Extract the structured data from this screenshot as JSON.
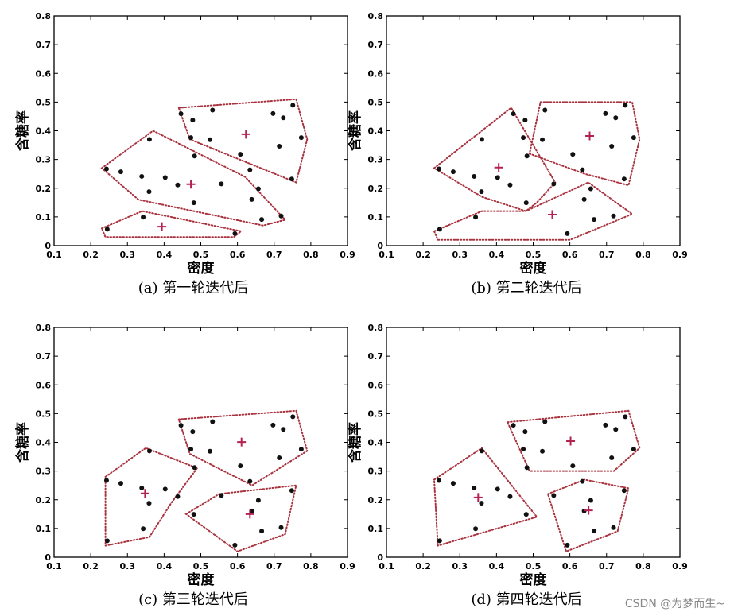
{
  "watermark": "CSDN @为梦而生~",
  "chart_data": [
    {
      "type": "scatter",
      "title": "(a) 第一轮迭代后",
      "xlabel": "密度",
      "ylabel": "含糖率",
      "xlim": [
        0.1,
        0.9
      ],
      "ylim": [
        0,
        0.8
      ],
      "xticks": [
        "0.1",
        "0.2",
        "0.3",
        "0.4",
        "0.5",
        "0.6",
        "0.7",
        "0.8",
        "0.9"
      ],
      "yticks": [
        "0",
        "0.1",
        "0.2",
        "0.3",
        "0.4",
        "0.5",
        "0.6",
        "0.7",
        "0.8"
      ],
      "grid": false,
      "points": [
        [
          0.697,
          0.46
        ],
        [
          0.774,
          0.376
        ],
        [
          0.634,
          0.264
        ],
        [
          0.608,
          0.318
        ],
        [
          0.556,
          0.215
        ],
        [
          0.403,
          0.237
        ],
        [
          0.481,
          0.149
        ],
        [
          0.437,
          0.211
        ],
        [
          0.666,
          0.091
        ],
        [
          0.243,
          0.267
        ],
        [
          0.245,
          0.057
        ],
        [
          0.343,
          0.099
        ],
        [
          0.639,
          0.161
        ],
        [
          0.657,
          0.198
        ],
        [
          0.36,
          0.37
        ],
        [
          0.593,
          0.042
        ],
        [
          0.719,
          0.103
        ],
        [
          0.359,
          0.188
        ],
        [
          0.339,
          0.241
        ],
        [
          0.282,
          0.257
        ],
        [
          0.748,
          0.232
        ],
        [
          0.714,
          0.346
        ],
        [
          0.483,
          0.312
        ],
        [
          0.478,
          0.437
        ],
        [
          0.525,
          0.369
        ],
        [
          0.751,
          0.489
        ],
        [
          0.532,
          0.472
        ],
        [
          0.473,
          0.376
        ],
        [
          0.725,
          0.445
        ],
        [
          0.446,
          0.459
        ]
      ],
      "centroids": [
        [
          0.623,
          0.388
        ],
        [
          0.473,
          0.214
        ],
        [
          0.394,
          0.066
        ]
      ],
      "hulls": [
        [
          [
            0.44,
            0.48
          ],
          [
            0.76,
            0.51
          ],
          [
            0.79,
            0.37
          ],
          [
            0.76,
            0.22
          ],
          [
            0.47,
            0.37
          ]
        ],
        [
          [
            0.23,
            0.27
          ],
          [
            0.37,
            0.4
          ],
          [
            0.62,
            0.24
          ],
          [
            0.73,
            0.09
          ],
          [
            0.67,
            0.07
          ],
          [
            0.33,
            0.16
          ]
        ],
        [
          [
            0.23,
            0.06
          ],
          [
            0.34,
            0.12
          ],
          [
            0.61,
            0.05
          ],
          [
            0.59,
            0.03
          ],
          [
            0.24,
            0.03
          ]
        ]
      ]
    },
    {
      "type": "scatter",
      "title": "(b) 第二轮迭代后",
      "xlabel": "密度",
      "ylabel": "含糖率",
      "xlim": [
        0.1,
        0.9
      ],
      "ylim": [
        0,
        0.8
      ],
      "xticks": [
        "0.1",
        "0.2",
        "0.3",
        "0.4",
        "0.5",
        "0.6",
        "0.7",
        "0.8",
        "0.9"
      ],
      "yticks": [
        "0",
        "0.1",
        "0.2",
        "0.3",
        "0.4",
        "0.5",
        "0.6",
        "0.7",
        "0.8"
      ],
      "grid": false,
      "points": [
        [
          0.697,
          0.46
        ],
        [
          0.774,
          0.376
        ],
        [
          0.634,
          0.264
        ],
        [
          0.608,
          0.318
        ],
        [
          0.556,
          0.215
        ],
        [
          0.403,
          0.237
        ],
        [
          0.481,
          0.149
        ],
        [
          0.437,
          0.211
        ],
        [
          0.666,
          0.091
        ],
        [
          0.243,
          0.267
        ],
        [
          0.245,
          0.057
        ],
        [
          0.343,
          0.099
        ],
        [
          0.639,
          0.161
        ],
        [
          0.657,
          0.198
        ],
        [
          0.36,
          0.37
        ],
        [
          0.593,
          0.042
        ],
        [
          0.719,
          0.103
        ],
        [
          0.359,
          0.188
        ],
        [
          0.339,
          0.241
        ],
        [
          0.282,
          0.257
        ],
        [
          0.748,
          0.232
        ],
        [
          0.714,
          0.346
        ],
        [
          0.483,
          0.312
        ],
        [
          0.478,
          0.437
        ],
        [
          0.525,
          0.369
        ],
        [
          0.751,
          0.489
        ],
        [
          0.532,
          0.472
        ],
        [
          0.473,
          0.376
        ],
        [
          0.725,
          0.445
        ],
        [
          0.446,
          0.459
        ]
      ],
      "centroids": [
        [
          0.654,
          0.382
        ],
        [
          0.406,
          0.272
        ],
        [
          0.552,
          0.108
        ]
      ],
      "hulls": [
        [
          [
            0.52,
            0.5
          ],
          [
            0.77,
            0.5
          ],
          [
            0.79,
            0.37
          ],
          [
            0.76,
            0.21
          ],
          [
            0.64,
            0.25
          ],
          [
            0.49,
            0.32
          ]
        ],
        [
          [
            0.23,
            0.27
          ],
          [
            0.44,
            0.48
          ],
          [
            0.56,
            0.22
          ],
          [
            0.51,
            0.15
          ],
          [
            0.48,
            0.12
          ],
          [
            0.36,
            0.17
          ]
        ],
        [
          [
            0.23,
            0.05
          ],
          [
            0.24,
            0.02
          ],
          [
            0.6,
            0.02
          ],
          [
            0.77,
            0.11
          ],
          [
            0.65,
            0.22
          ],
          [
            0.48,
            0.12
          ],
          [
            0.36,
            0.12
          ]
        ]
      ]
    },
    {
      "type": "scatter",
      "title": "(c) 第三轮迭代后",
      "xlabel": "密度",
      "ylabel": "含糖率",
      "xlim": [
        0.1,
        0.9
      ],
      "ylim": [
        0,
        0.8
      ],
      "xticks": [
        "0.1",
        "0.2",
        "0.3",
        "0.4",
        "0.5",
        "0.6",
        "0.7",
        "0.8",
        "0.9"
      ],
      "yticks": [
        "0",
        "0.1",
        "0.2",
        "0.3",
        "0.4",
        "0.5",
        "0.6",
        "0.7",
        "0.8"
      ],
      "grid": false,
      "points": [
        [
          0.697,
          0.46
        ],
        [
          0.774,
          0.376
        ],
        [
          0.634,
          0.264
        ],
        [
          0.608,
          0.318
        ],
        [
          0.556,
          0.215
        ],
        [
          0.403,
          0.237
        ],
        [
          0.481,
          0.149
        ],
        [
          0.437,
          0.211
        ],
        [
          0.666,
          0.091
        ],
        [
          0.243,
          0.267
        ],
        [
          0.245,
          0.057
        ],
        [
          0.343,
          0.099
        ],
        [
          0.639,
          0.161
        ],
        [
          0.657,
          0.198
        ],
        [
          0.36,
          0.37
        ],
        [
          0.593,
          0.042
        ],
        [
          0.719,
          0.103
        ],
        [
          0.359,
          0.188
        ],
        [
          0.339,
          0.241
        ],
        [
          0.282,
          0.257
        ],
        [
          0.748,
          0.232
        ],
        [
          0.714,
          0.346
        ],
        [
          0.483,
          0.312
        ],
        [
          0.478,
          0.437
        ],
        [
          0.525,
          0.369
        ],
        [
          0.751,
          0.489
        ],
        [
          0.532,
          0.472
        ],
        [
          0.473,
          0.376
        ],
        [
          0.725,
          0.445
        ],
        [
          0.446,
          0.459
        ]
      ],
      "centroids": [
        [
          0.611,
          0.401
        ],
        [
          0.348,
          0.222
        ],
        [
          0.634,
          0.15
        ]
      ],
      "hulls": [
        [
          [
            0.44,
            0.48
          ],
          [
            0.76,
            0.51
          ],
          [
            0.79,
            0.37
          ],
          [
            0.64,
            0.25
          ],
          [
            0.47,
            0.36
          ]
        ],
        [
          [
            0.24,
            0.28
          ],
          [
            0.35,
            0.38
          ],
          [
            0.49,
            0.31
          ],
          [
            0.42,
            0.19
          ],
          [
            0.36,
            0.07
          ],
          [
            0.24,
            0.04
          ]
        ],
        [
          [
            0.46,
            0.15
          ],
          [
            0.55,
            0.22
          ],
          [
            0.76,
            0.25
          ],
          [
            0.73,
            0.08
          ],
          [
            0.6,
            0.02
          ]
        ]
      ]
    },
    {
      "type": "scatter",
      "title": "(d) 第四轮迭代后",
      "xlabel": "密度",
      "ylabel": "含糖率",
      "xlim": [
        0.1,
        0.9
      ],
      "ylim": [
        0,
        0.8
      ],
      "xticks": [
        "0.1",
        "0.2",
        "0.3",
        "0.4",
        "0.5",
        "0.6",
        "0.7",
        "0.8",
        "0.9"
      ],
      "yticks": [
        "0",
        "0.1",
        "0.2",
        "0.3",
        "0.4",
        "0.5",
        "0.6",
        "0.7",
        "0.8"
      ],
      "grid": false,
      "points": [
        [
          0.697,
          0.46
        ],
        [
          0.774,
          0.376
        ],
        [
          0.634,
          0.264
        ],
        [
          0.608,
          0.318
        ],
        [
          0.556,
          0.215
        ],
        [
          0.403,
          0.237
        ],
        [
          0.481,
          0.149
        ],
        [
          0.437,
          0.211
        ],
        [
          0.666,
          0.091
        ],
        [
          0.243,
          0.267
        ],
        [
          0.245,
          0.057
        ],
        [
          0.343,
          0.099
        ],
        [
          0.639,
          0.161
        ],
        [
          0.657,
          0.198
        ],
        [
          0.36,
          0.37
        ],
        [
          0.593,
          0.042
        ],
        [
          0.719,
          0.103
        ],
        [
          0.359,
          0.188
        ],
        [
          0.339,
          0.241
        ],
        [
          0.282,
          0.257
        ],
        [
          0.748,
          0.232
        ],
        [
          0.714,
          0.346
        ],
        [
          0.483,
          0.312
        ],
        [
          0.478,
          0.437
        ],
        [
          0.525,
          0.369
        ],
        [
          0.751,
          0.489
        ],
        [
          0.532,
          0.472
        ],
        [
          0.473,
          0.376
        ],
        [
          0.725,
          0.445
        ],
        [
          0.446,
          0.459
        ]
      ],
      "centroids": [
        [
          0.602,
          0.404
        ],
        [
          0.35,
          0.208
        ],
        [
          0.651,
          0.163
        ]
      ],
      "hulls": [
        [
          [
            0.43,
            0.47
          ],
          [
            0.76,
            0.51
          ],
          [
            0.79,
            0.38
          ],
          [
            0.72,
            0.3
          ],
          [
            0.49,
            0.3
          ]
        ],
        [
          [
            0.23,
            0.27
          ],
          [
            0.36,
            0.38
          ],
          [
            0.51,
            0.14
          ],
          [
            0.24,
            0.04
          ]
        ],
        [
          [
            0.54,
            0.22
          ],
          [
            0.64,
            0.27
          ],
          [
            0.76,
            0.24
          ],
          [
            0.73,
            0.09
          ],
          [
            0.59,
            0.02
          ]
        ]
      ]
    }
  ],
  "colors": {
    "point": "#111111",
    "centroid": "#b5224f",
    "hull": "#a8323e"
  }
}
